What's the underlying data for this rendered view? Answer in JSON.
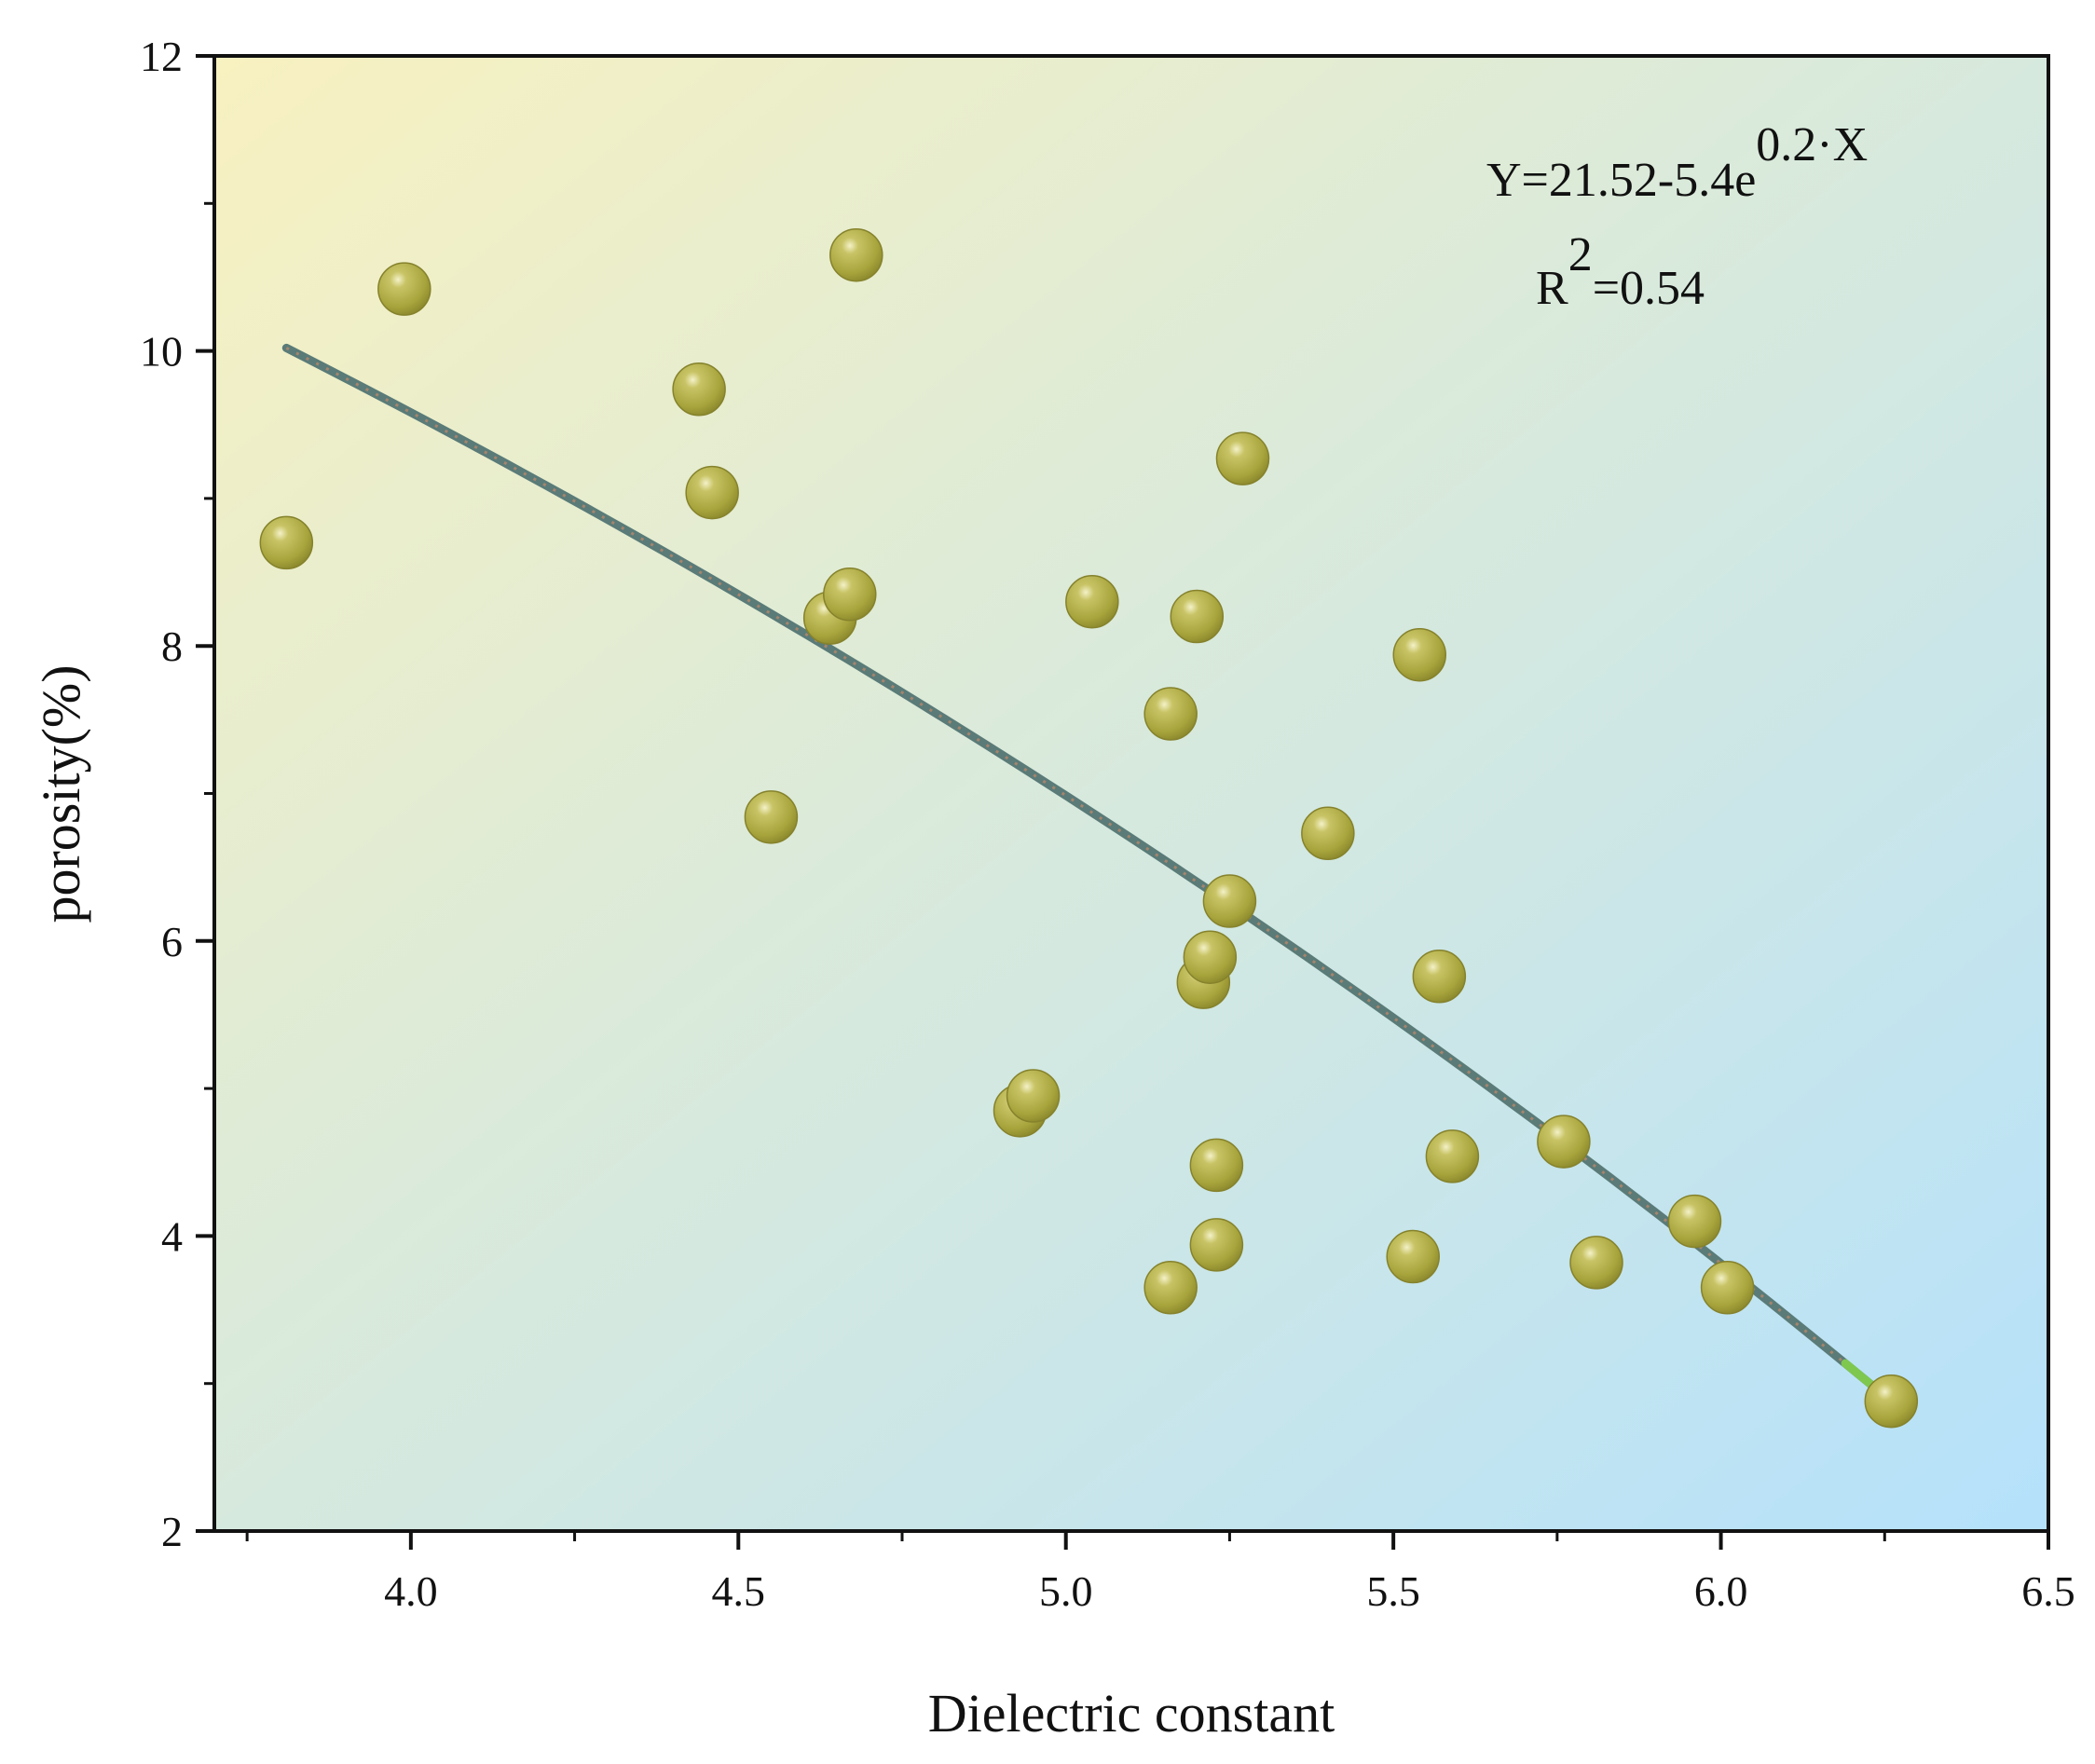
{
  "chart_data": {
    "type": "scatter",
    "title": "",
    "xlabel": "Dielectric constant",
    "ylabel": "porosity(%)",
    "xlim": [
      3.7,
      6.5
    ],
    "ylim": [
      2,
      12
    ],
    "xticks": [
      "4.0",
      "4.5",
      "5.0",
      "5.5",
      "6.0",
      "6.5"
    ],
    "yticks": [
      "2",
      "4",
      "6",
      "8",
      "10",
      "12"
    ],
    "grid": false,
    "legend": "none",
    "colors": {
      "point": "#a7a43c",
      "point_highlight": "#f4f1c8",
      "fit_line": "#5a7b78",
      "fit_line_end": "#7ec850",
      "bg_top_left": "#f8f1c0",
      "bg_bottom_right": "#b5e1fb"
    },
    "points": [
      {
        "x": 3.81,
        "y": 8.7
      },
      {
        "x": 3.99,
        "y": 10.42
      },
      {
        "x": 4.44,
        "y": 9.74
      },
      {
        "x": 4.46,
        "y": 9.04
      },
      {
        "x": 4.55,
        "y": 6.84
      },
      {
        "x": 4.64,
        "y": 8.19
      },
      {
        "x": 4.67,
        "y": 8.35
      },
      {
        "x": 4.68,
        "y": 10.65
      },
      {
        "x": 4.93,
        "y": 4.85
      },
      {
        "x": 4.95,
        "y": 4.95
      },
      {
        "x": 5.04,
        "y": 8.3
      },
      {
        "x": 5.16,
        "y": 7.54
      },
      {
        "x": 5.16,
        "y": 3.65
      },
      {
        "x": 5.2,
        "y": 8.2
      },
      {
        "x": 5.21,
        "y": 5.72
      },
      {
        "x": 5.22,
        "y": 5.89
      },
      {
        "x": 5.23,
        "y": 4.48
      },
      {
        "x": 5.23,
        "y": 3.94
      },
      {
        "x": 5.25,
        "y": 6.27
      },
      {
        "x": 5.27,
        "y": 9.27
      },
      {
        "x": 5.4,
        "y": 6.73
      },
      {
        "x": 5.53,
        "y": 3.86
      },
      {
        "x": 5.54,
        "y": 7.94
      },
      {
        "x": 5.57,
        "y": 5.76
      },
      {
        "x": 5.59,
        "y": 4.54
      },
      {
        "x": 5.76,
        "y": 4.64
      },
      {
        "x": 5.81,
        "y": 3.82
      },
      {
        "x": 5.96,
        "y": 4.1
      },
      {
        "x": 6.01,
        "y": 3.65
      },
      {
        "x": 6.26,
        "y": 2.88
      }
    ],
    "fit": {
      "x_range": [
        3.81,
        6.26
      ],
      "start_y": 10.02,
      "end_y": 2.88
    },
    "annotations": {
      "equation_base": "Y=21.52-5.4e",
      "equation_exp": "0.2·X",
      "r2_base": "R",
      "r2_sup": "2",
      "r2_value": "=0.54"
    }
  }
}
